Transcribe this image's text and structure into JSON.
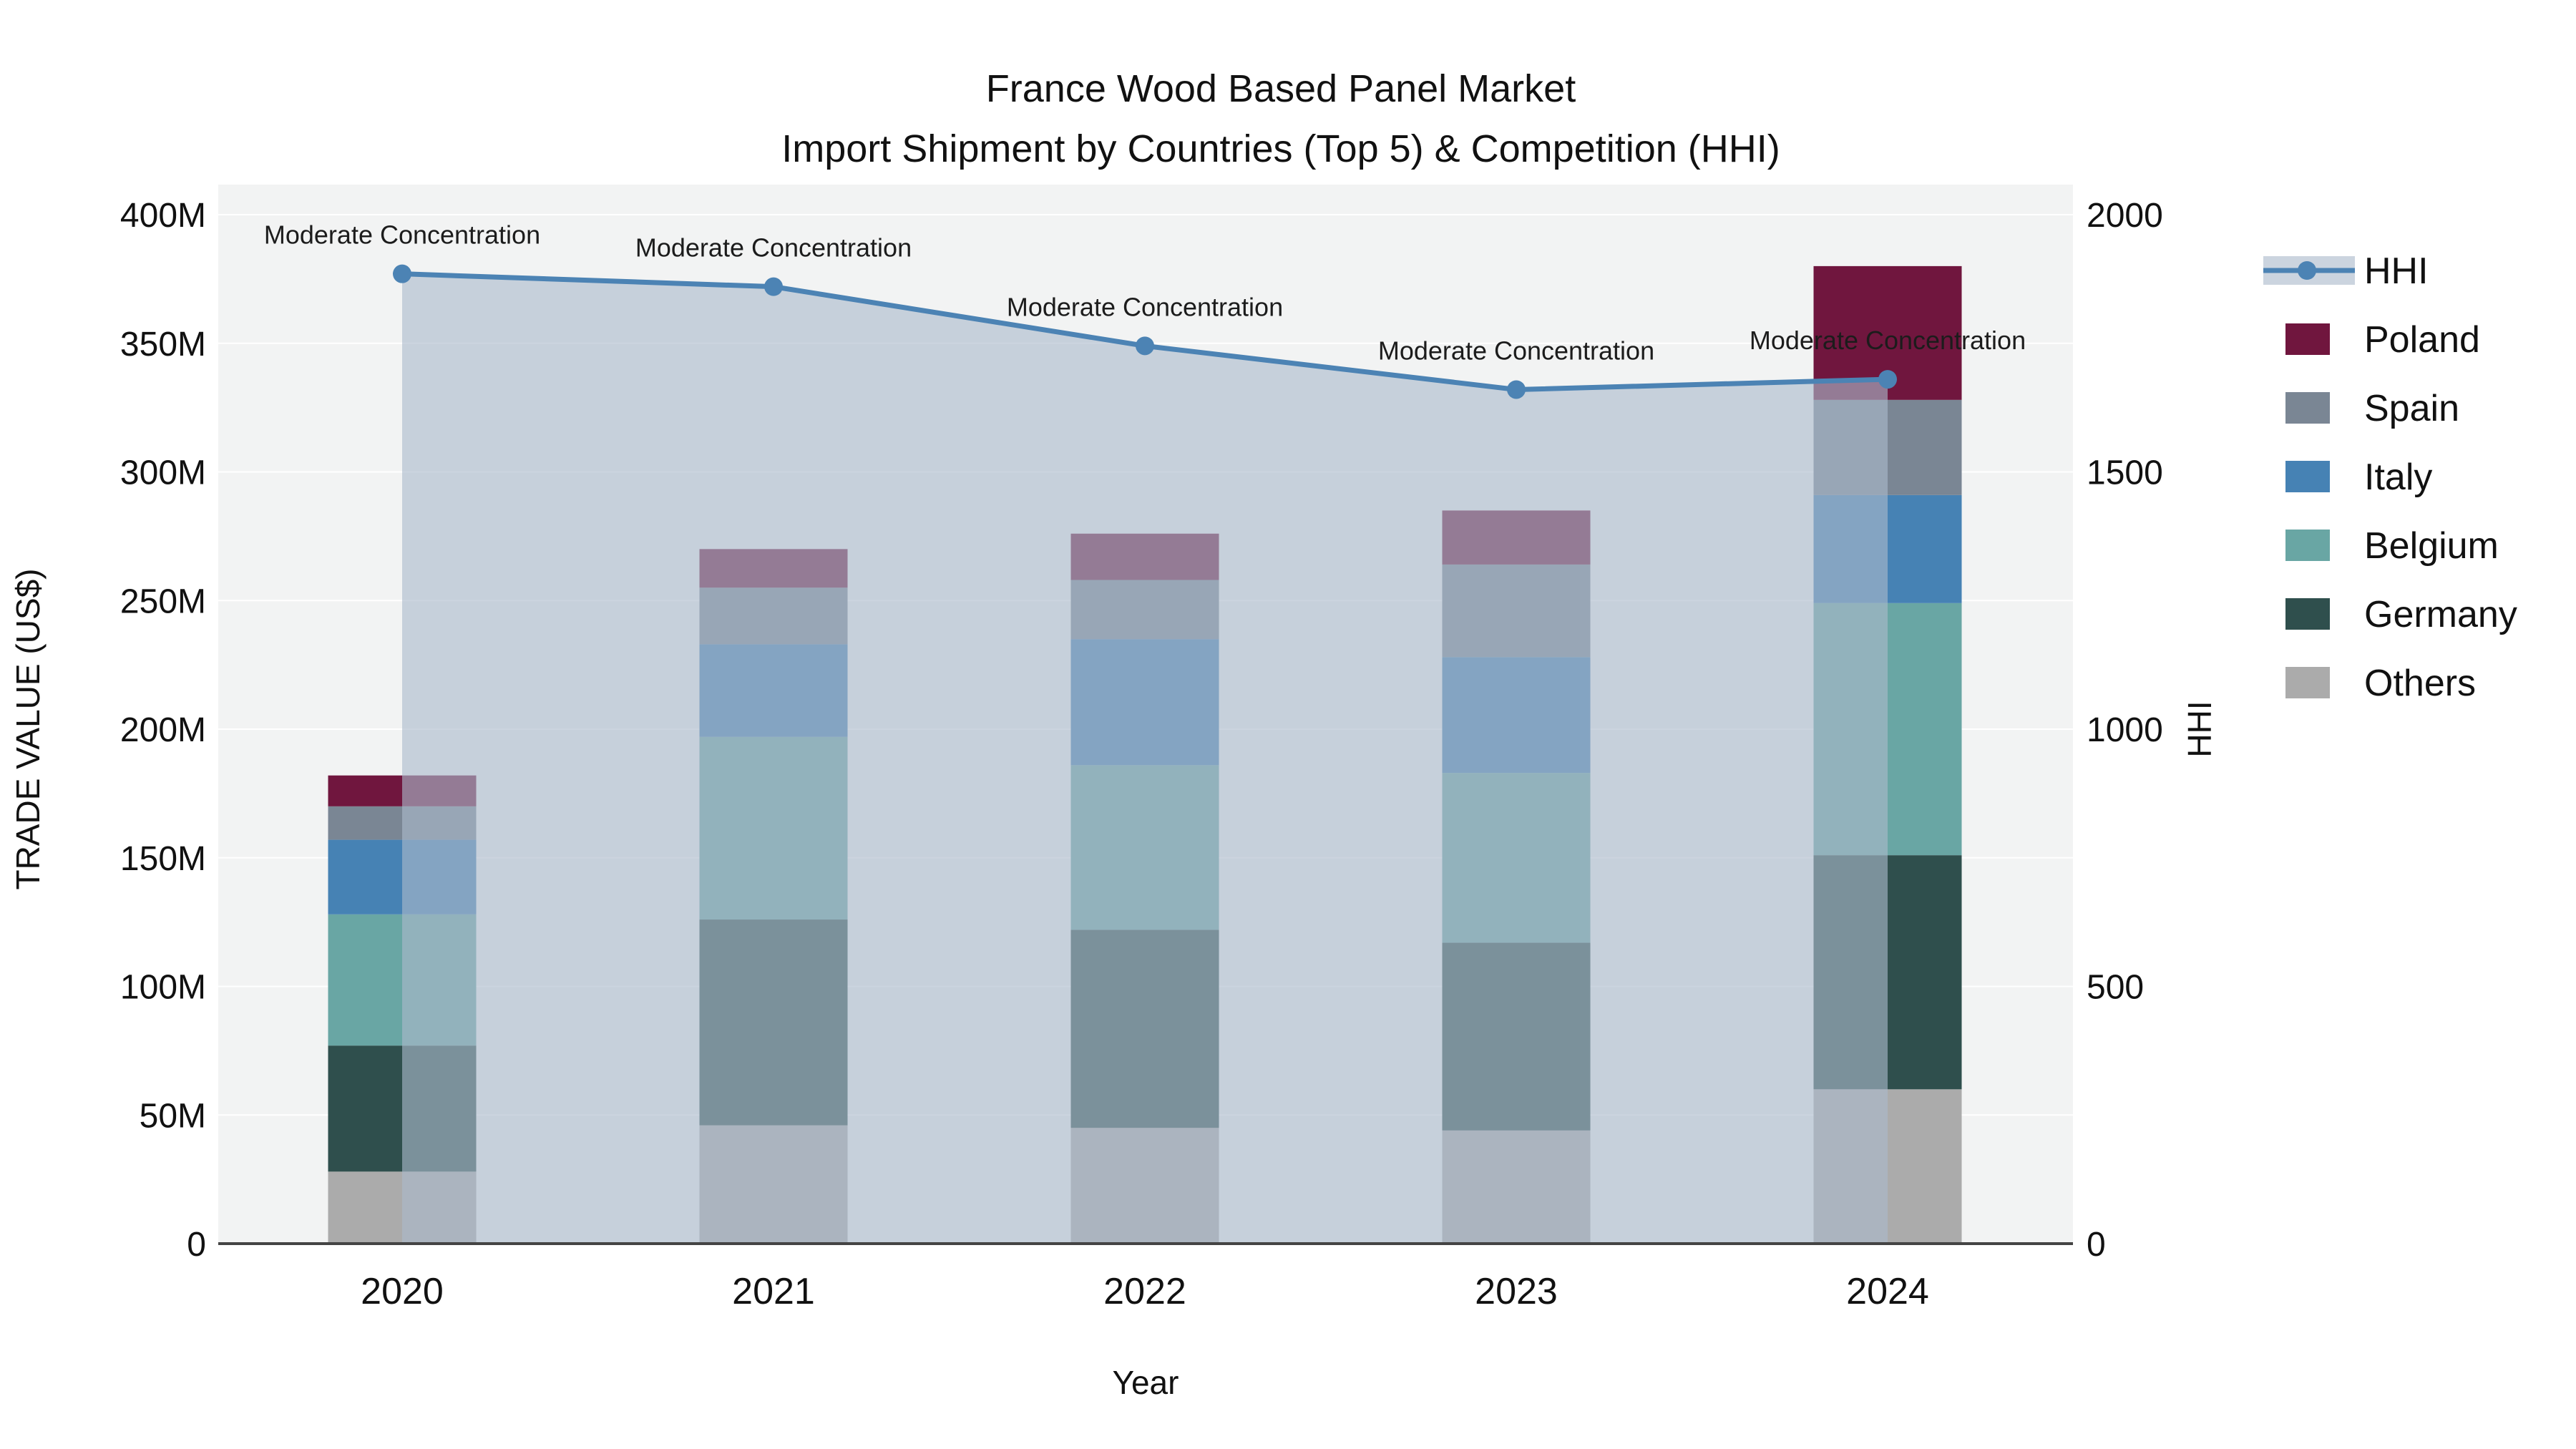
{
  "chart_data": {
    "type": "bar+line",
    "title_line1": "France Wood Based Panel Market",
    "title_line2": "Import Shipment by Countries (Top 5) & Competition (HHI)",
    "xlabel": "Year",
    "ylabel_left": "TRADE VALUE (US$)",
    "ylabel_right": "HHI",
    "categories": [
      "2020",
      "2021",
      "2022",
      "2023",
      "2024"
    ],
    "value_unit": "millions USD",
    "stack_order_bottom_to_top": [
      "Others",
      "Germany",
      "Belgium",
      "Italy",
      "Spain",
      "Poland"
    ],
    "series": [
      {
        "name": "Poland",
        "color": "#70163E",
        "values": [
          12,
          15,
          18,
          21,
          52
        ]
      },
      {
        "name": "Spain",
        "color": "#7A8694",
        "values": [
          13,
          22,
          23,
          36,
          37
        ]
      },
      {
        "name": "Italy",
        "color": "#4682B4",
        "values": [
          29,
          36,
          49,
          45,
          42
        ]
      },
      {
        "name": "Belgium",
        "color": "#69A6A4",
        "values": [
          51,
          71,
          64,
          66,
          98
        ]
      },
      {
        "name": "Germany",
        "color": "#2F4F4D",
        "values": [
          49,
          80,
          77,
          73,
          91
        ]
      },
      {
        "name": "Others",
        "color": "#ABABAB",
        "values": [
          28,
          46,
          45,
          44,
          60
        ]
      }
    ],
    "bar_totals": [
      182,
      270,
      276,
      285,
      380
    ],
    "hhi_series": {
      "name": "HHI",
      "line_color": "#4C83B4",
      "fill_color": "rgba(171,185,203,0.62)",
      "values": [
        1885,
        1860,
        1745,
        1660,
        1680
      ]
    },
    "annotation_label": "Moderate Concentration",
    "y_left_axis": {
      "ticks": [
        "0",
        "50M",
        "100M",
        "150M",
        "200M",
        "250M",
        "300M",
        "350M",
        "400M"
      ],
      "tick_values": [
        0,
        50,
        100,
        150,
        200,
        250,
        300,
        350,
        400
      ],
      "max": 400
    },
    "y_right_axis": {
      "ticks": [
        "0",
        "500",
        "1000",
        "1500",
        "2000"
      ],
      "tick_values": [
        0,
        500,
        1000,
        1500,
        2000
      ],
      "max": 2000
    },
    "legend_order": [
      "HHI",
      "Poland",
      "Spain",
      "Italy",
      "Belgium",
      "Germany",
      "Others"
    ],
    "plot_background": "#F2F3F3",
    "gridline_color": "#FFFFFF",
    "axisline_color": "#444444"
  }
}
